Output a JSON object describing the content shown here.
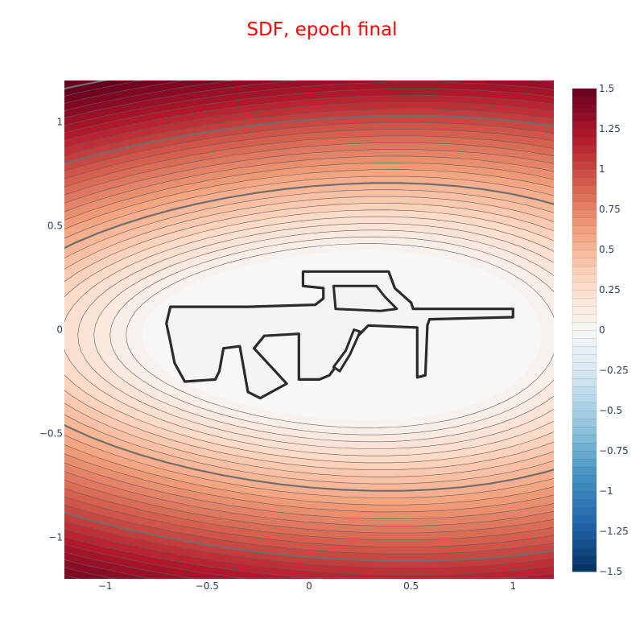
{
  "chart_data": {
    "type": "contour",
    "title": "SDF, epoch final",
    "xlabel": "",
    "ylabel": "",
    "xlim": [
      -1.2,
      1.2
    ],
    "ylim": [
      -1.2,
      1.2
    ],
    "x_ticks": [
      {
        "value": -1,
        "label": "−1"
      },
      {
        "value": -0.5,
        "label": "−0.5"
      },
      {
        "value": 0,
        "label": "0"
      },
      {
        "value": 0.5,
        "label": "0.5"
      },
      {
        "value": 1,
        "label": "1"
      }
    ],
    "y_ticks": [
      {
        "value": 1,
        "label": "1"
      },
      {
        "value": 0.5,
        "label": "0.5"
      },
      {
        "value": 0,
        "label": "0"
      },
      {
        "value": -0.5,
        "label": "−0.5"
      },
      {
        "value": -1,
        "label": "−1"
      }
    ],
    "colorbar": {
      "range": [
        -1.5,
        1.5
      ],
      "step": 0.05,
      "colorscale": "RdBu",
      "ticks": [
        {
          "value": 1.5,
          "label": "1.5"
        },
        {
          "value": 1.25,
          "label": "1.25"
        },
        {
          "value": 1,
          "label": "1"
        },
        {
          "value": 0.75,
          "label": "0.75"
        },
        {
          "value": 0.5,
          "label": "0.5"
        },
        {
          "value": 0.25,
          "label": "0.25"
        },
        {
          "value": 0,
          "label": "0"
        },
        {
          "value": -0.25,
          "label": "−0.25"
        },
        {
          "value": -0.5,
          "label": "−0.5"
        },
        {
          "value": -0.75,
          "label": "−0.75"
        },
        {
          "value": -1,
          "label": "−1"
        },
        {
          "value": -1.25,
          "label": "−1.25"
        },
        {
          "value": -1.5,
          "label": "−1.5"
        }
      ]
    },
    "contour_levels": {
      "start": 0,
      "end": 1.5,
      "step": 0.05,
      "highlight_every": 0.5
    },
    "zero_level_outline": [
      [
        -0.68,
        0.11
      ],
      [
        -0.3,
        0.11
      ],
      [
        0.03,
        0.12
      ],
      [
        0.07,
        0.15
      ],
      [
        0.07,
        0.2
      ],
      [
        -0.03,
        0.21
      ],
      [
        -0.03,
        0.28
      ],
      [
        0.39,
        0.28
      ],
      [
        0.42,
        0.2
      ],
      [
        0.5,
        0.13
      ],
      [
        0.51,
        0.1
      ],
      [
        1.0,
        0.1
      ],
      [
        1.0,
        0.06
      ],
      [
        0.59,
        0.05
      ],
      [
        0.58,
        0.02
      ],
      [
        0.57,
        -0.22
      ],
      [
        0.53,
        -0.23
      ],
      [
        0.53,
        0.01
      ],
      [
        0.29,
        0.02
      ],
      [
        0.24,
        -0.03
      ],
      [
        0.1,
        -0.22
      ],
      [
        0.05,
        -0.24
      ],
      [
        -0.05,
        -0.24
      ],
      [
        -0.05,
        -0.02
      ],
      [
        -0.22,
        -0.03
      ],
      [
        -0.27,
        -0.09
      ],
      [
        -0.11,
        -0.26
      ],
      [
        -0.24,
        -0.33
      ],
      [
        -0.3,
        -0.3
      ],
      [
        -0.34,
        -0.08
      ],
      [
        -0.42,
        -0.09
      ],
      [
        -0.44,
        -0.2
      ],
      [
        -0.46,
        -0.24
      ],
      [
        -0.61,
        -0.25
      ],
      [
        -0.66,
        -0.16
      ],
      [
        -0.68,
        -0.06
      ],
      [
        -0.7,
        0.03
      ],
      [
        -0.68,
        0.11
      ]
    ],
    "zero_level_holes": [
      [
        [
          0.12,
          0.21
        ],
        [
          0.33,
          0.21
        ],
        [
          0.37,
          0.16
        ],
        [
          0.43,
          0.1
        ],
        [
          0.35,
          0.09
        ],
        [
          0.13,
          0.1
        ],
        [
          0.12,
          0.21
        ]
      ],
      [
        [
          0.22,
          0.0
        ],
        [
          0.25,
          -0.01
        ],
        [
          0.2,
          -0.12
        ],
        [
          0.15,
          -0.2
        ],
        [
          0.12,
          -0.18
        ],
        [
          0.18,
          -0.1
        ],
        [
          0.22,
          0.0
        ]
      ]
    ]
  }
}
